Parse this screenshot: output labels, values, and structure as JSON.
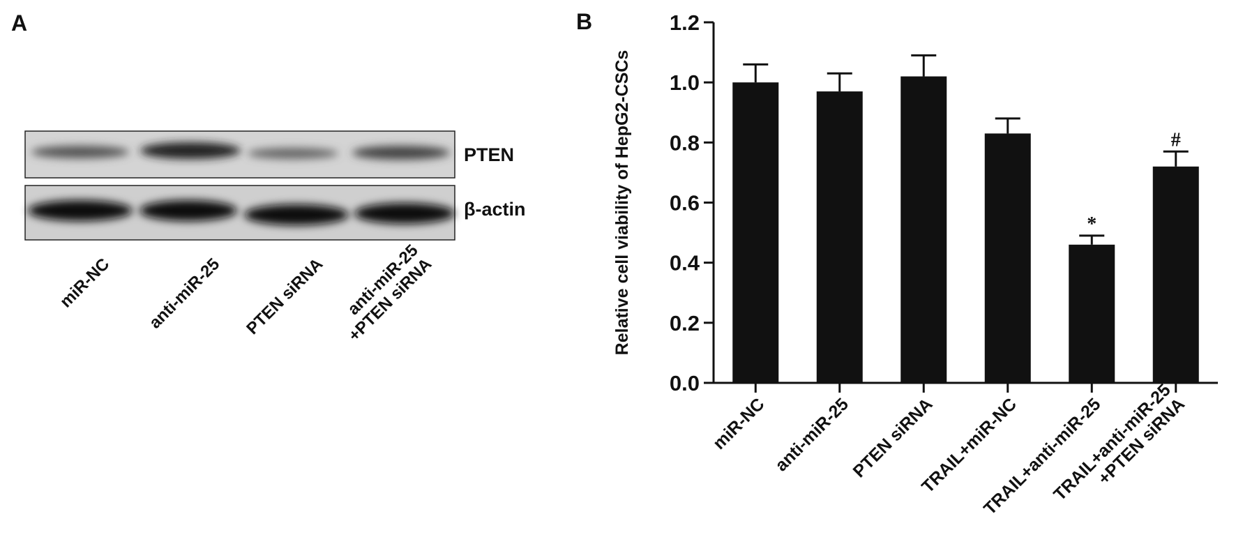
{
  "panel_a": {
    "label": "A",
    "band_labels": [
      "PTEN",
      "β-actin"
    ],
    "lanes": [
      "miR-NC",
      "anti-miR-25",
      "PTEN siRNA",
      "anti-miR-25\n+PTEN siRNA"
    ]
  },
  "chart_data": {
    "type": "bar",
    "panel_label": "B",
    "y_label": "Relative cell viability of HepG2-CSCs",
    "categories": [
      "miR-NC",
      "anti-miR-25",
      "PTEN siRNA",
      "TRAIL+miR-NC",
      "TRAIL+anti-miR-25",
      "TRAIL+anti-miR-25\n+PTEN siRNA"
    ],
    "values": [
      1.0,
      0.97,
      1.02,
      0.83,
      0.46,
      0.72
    ],
    "errors": [
      0.06,
      0.06,
      0.07,
      0.05,
      0.03,
      0.05
    ],
    "significance": [
      null,
      null,
      null,
      null,
      "*",
      "#"
    ],
    "color": "#111111",
    "ylim": [
      0,
      1.2
    ],
    "yticks": [
      {
        "value": 0,
        "label": "0.0"
      },
      0.2,
      0.4,
      0.6,
      0.8,
      {
        "value": 1,
        "label": "1.0"
      },
      1.2
    ]
  }
}
